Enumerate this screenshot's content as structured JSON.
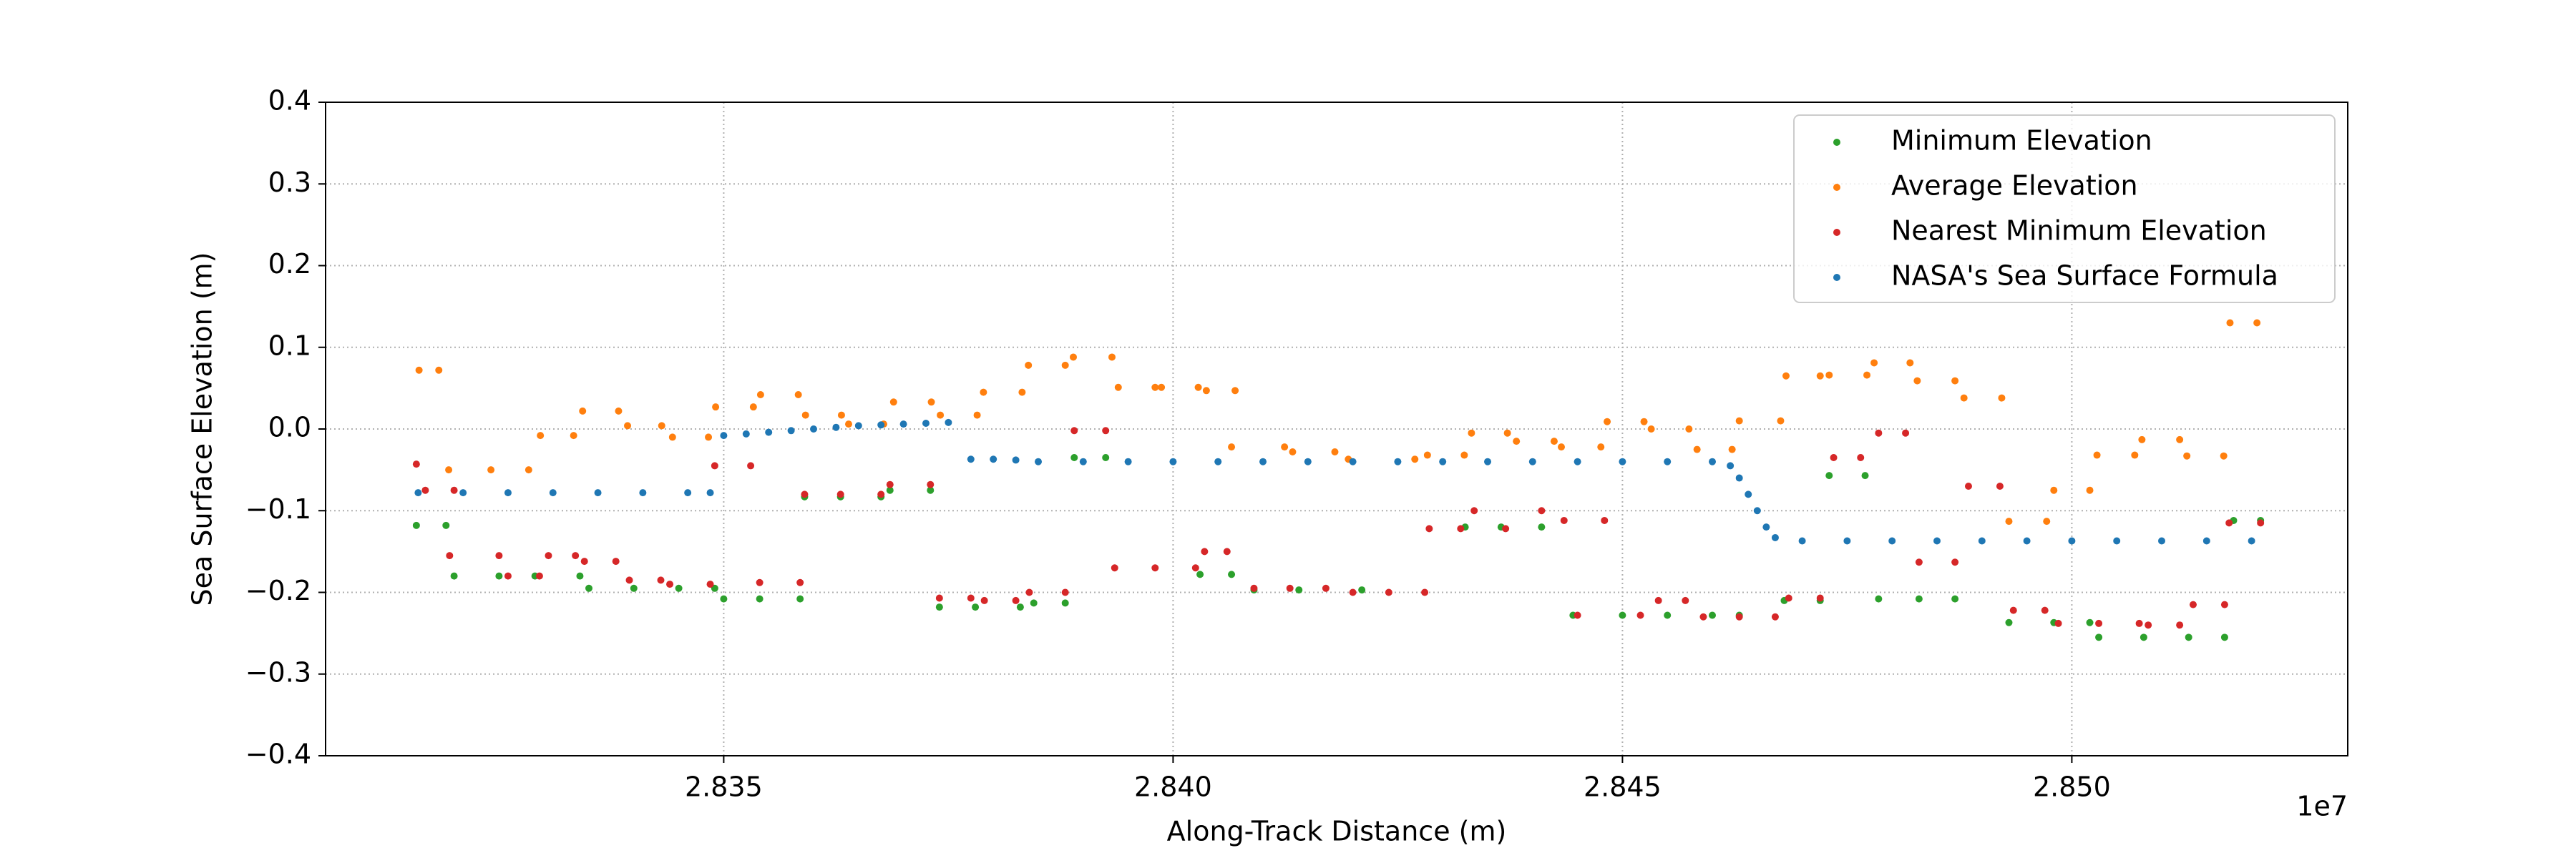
{
  "chart_data": {
    "type": "scatter",
    "xlabel": "Along-Track Distance (m)",
    "ylabel": "Sea Surface Elevation (m)",
    "x_offset_text": "1e7",
    "xlim": [
      28305700,
      28530700
    ],
    "ylim": [
      -0.4,
      0.4
    ],
    "xticks": [
      {
        "value": 28350000,
        "label": "2.835"
      },
      {
        "value": 28400000,
        "label": "2.840"
      },
      {
        "value": 28450000,
        "label": "2.845"
      },
      {
        "value": 28500000,
        "label": "2.850"
      }
    ],
    "yticks": [
      {
        "value": -0.4,
        "label": "−0.4"
      },
      {
        "value": -0.3,
        "label": "−0.3"
      },
      {
        "value": -0.2,
        "label": "−0.2"
      },
      {
        "value": -0.1,
        "label": "−0.1"
      },
      {
        "value": 0,
        "label": "0.0"
      },
      0.1,
      0.2,
      0.3,
      0.4
    ],
    "grid": true,
    "legend": "upper right",
    "series": [
      {
        "name": "Minimum Elevation",
        "color": "#2ca02c",
        "x": [
          28315800,
          28319100,
          28320000,
          28325000,
          28329000,
          28334000,
          28335000,
          28340000,
          28345000,
          28349000,
          28350000,
          28354000,
          28358500,
          28359000,
          28363000,
          28367500,
          28368500,
          28373000,
          28374000,
          28378000,
          28383000,
          28384500,
          28388000,
          28389000,
          28392500,
          28403000,
          28406500,
          28409000,
          28414000,
          28421000,
          28432500,
          28436500,
          28441000,
          28444500,
          28450000,
          28455000,
          28460000,
          28463000,
          28468000,
          28472000,
          28473000,
          28477000,
          28478500,
          28483000,
          28487000,
          28493000,
          28498000,
          28502000,
          28503000,
          28508000,
          28513000,
          28517000,
          28518000,
          28521000
        ],
        "values": [
          -0.118,
          -0.118,
          -0.18,
          -0.18,
          -0.18,
          -0.18,
          -0.195,
          -0.195,
          -0.195,
          -0.195,
          -0.208,
          -0.208,
          -0.208,
          -0.083,
          -0.083,
          -0.083,
          -0.075,
          -0.075,
          -0.218,
          -0.218,
          -0.218,
          -0.213,
          -0.213,
          -0.035,
          -0.035,
          -0.178,
          -0.178,
          -0.197,
          -0.197,
          -0.197,
          -0.12,
          -0.12,
          -0.12,
          -0.228,
          -0.228,
          -0.228,
          -0.228,
          -0.228,
          -0.21,
          -0.21,
          -0.057,
          -0.057,
          -0.208,
          -0.208,
          -0.208,
          -0.237,
          -0.237,
          -0.237,
          -0.255,
          -0.255,
          -0.255,
          -0.255,
          -0.112,
          -0.112
        ]
      },
      {
        "name": "Average Elevation",
        "color": "#ff7f0e",
        "x": [
          28316100,
          28318300,
          28319400,
          28324100,
          28328300,
          28329600,
          28333300,
          28334300,
          28338300,
          28339300,
          28343100,
          28344300,
          28348300,
          28349100,
          28353300,
          28354100,
          28358300,
          28359100,
          28363100,
          28363900,
          28367800,
          28368900,
          28373100,
          28374100,
          28378200,
          28378900,
          28383200,
          28383900,
          28388000,
          28388900,
          28393200,
          28393900,
          28398000,
          28398700,
          28402800,
          28403700,
          28406900,
          28406500,
          28412400,
          28413300,
          28418000,
          28419500,
          28426900,
          28428300,
          28432400,
          28433200,
          28437200,
          28438200,
          28442400,
          28443200,
          28447600,
          28448300,
          28452400,
          28453200,
          28457400,
          28458300,
          28462200,
          28463000,
          28467600,
          28468200,
          28472000,
          28473000,
          28477200,
          28478000,
          28482000,
          28482800,
          28487000,
          28488000,
          28492200,
          28493000,
          28497200,
          28498000,
          28502000,
          28502800,
          28507000,
          28507800,
          28512000,
          28512800,
          28516900,
          28517600,
          28520600
        ],
        "values": [
          0.072,
          0.072,
          -0.05,
          -0.05,
          -0.05,
          -0.008,
          -0.008,
          0.022,
          0.022,
          0.004,
          0.004,
          -0.01,
          -0.01,
          0.027,
          0.027,
          0.042,
          0.042,
          0.017,
          0.017,
          0.006,
          0.006,
          0.033,
          0.033,
          0.017,
          0.017,
          0.045,
          0.045,
          0.078,
          0.078,
          0.088,
          0.088,
          0.051,
          0.051,
          0.051,
          0.051,
          0.047,
          0.047,
          -0.022,
          -0.022,
          -0.028,
          -0.028,
          -0.037,
          -0.037,
          -0.032,
          -0.032,
          -0.005,
          -0.005,
          -0.015,
          -0.015,
          -0.022,
          -0.022,
          0.009,
          0.009,
          0,
          0,
          -0.025,
          -0.025,
          0.01,
          0.01,
          0.065,
          0.065,
          0.066,
          0.066,
          0.081,
          0.081,
          0.059,
          0.059,
          0.038,
          0.038,
          -0.113,
          -0.113,
          -0.075,
          -0.075,
          -0.032,
          -0.032,
          -0.013,
          -0.013,
          -0.033,
          -0.033,
          0.13,
          0.13
        ]
      },
      {
        "name": "Nearest Minimum Elevation",
        "color": "#d62728",
        "x": [
          28315800,
          28316800,
          28320000,
          28319500,
          28325000,
          28326000,
          28329500,
          28330500,
          28333500,
          28334500,
          28338000,
          28339500,
          28343000,
          28344000,
          28348500,
          28349000,
          28353000,
          28354000,
          28358500,
          28359000,
          28363000,
          28367500,
          28368500,
          28373000,
          28374000,
          28377500,
          28379000,
          28382500,
          28384000,
          28388000,
          28389000,
          28392500,
          28393500,
          28398000,
          28402500,
          28403500,
          28406000,
          28409000,
          28413000,
          28417000,
          28420000,
          28424000,
          28428000,
          28428500,
          28432000,
          28437000,
          28433500,
          28441000,
          28443500,
          28448000,
          28445000,
          28452000,
          28454000,
          28457000,
          28459000,
          28463000,
          28467000,
          28468500,
          28472000,
          28473500,
          28476500,
          28478500,
          28481500,
          28483000,
          28487000,
          28488500,
          28492000,
          28493500,
          28497000,
          28498500,
          28503000,
          28507500,
          28508500,
          28512000,
          28513500,
          28517000,
          28517500,
          28521000
        ],
        "values": [
          -0.043,
          -0.075,
          -0.075,
          -0.155,
          -0.155,
          -0.18,
          -0.18,
          -0.155,
          -0.155,
          -0.162,
          -0.162,
          -0.185,
          -0.185,
          -0.19,
          -0.19,
          -0.045,
          -0.045,
          -0.188,
          -0.188,
          -0.08,
          -0.08,
          -0.08,
          -0.068,
          -0.068,
          -0.207,
          -0.207,
          -0.21,
          -0.21,
          -0.2,
          -0.2,
          -0.002,
          -0.002,
          -0.17,
          -0.17,
          -0.17,
          -0.15,
          -0.15,
          -0.195,
          -0.195,
          -0.195,
          -0.2,
          -0.2,
          -0.2,
          -0.122,
          -0.122,
          -0.122,
          -0.1,
          -0.1,
          -0.112,
          -0.112,
          -0.228,
          -0.228,
          -0.21,
          -0.21,
          -0.23,
          -0.23,
          -0.23,
          -0.207,
          -0.207,
          -0.035,
          -0.035,
          -0.005,
          -0.005,
          -0.163,
          -0.163,
          -0.07,
          -0.07,
          -0.222,
          -0.222,
          -0.238,
          -0.238,
          -0.238,
          -0.24,
          -0.24,
          -0.215,
          -0.215,
          -0.115,
          -0.115
        ]
      },
      {
        "name": "NASA's Sea Surface Formula",
        "color": "#1f77b4",
        "x": [
          28316000,
          28321000,
          28326000,
          28331000,
          28336000,
          28341000,
          28346000,
          28348500,
          28350000,
          28352500,
          28355000,
          28357500,
          28360000,
          28362500,
          28365000,
          28367500,
          28370000,
          28372500,
          28375000,
          28377500,
          28380000,
          28382500,
          28385000,
          28390000,
          28395000,
          28400000,
          28405000,
          28410000,
          28415000,
          28420000,
          28425000,
          28430000,
          28435000,
          28440000,
          28445000,
          28450000,
          28455000,
          28460000,
          28462000,
          28463000,
          28464000,
          28465000,
          28466000,
          28467000,
          28470000,
          28475000,
          28480000,
          28485000,
          28490000,
          28495000,
          28500000,
          28505000,
          28510000,
          28515000,
          28520000
        ],
        "values": [
          -0.078,
          -0.078,
          -0.078,
          -0.078,
          -0.078,
          -0.078,
          -0.078,
          -0.078,
          -0.008,
          -0.006,
          -0.004,
          -0.002,
          0,
          0.002,
          0.004,
          0.005,
          0.006,
          0.007,
          0.008,
          -0.037,
          -0.037,
          -0.038,
          -0.04,
          -0.04,
          -0.04,
          -0.04,
          -0.04,
          -0.04,
          -0.04,
          -0.04,
          -0.04,
          -0.04,
          -0.04,
          -0.04,
          -0.04,
          -0.04,
          -0.04,
          -0.04,
          -0.045,
          -0.06,
          -0.08,
          -0.1,
          -0.12,
          -0.133,
          -0.137,
          -0.137,
          -0.137,
          -0.137,
          -0.137,
          -0.137,
          -0.137,
          -0.137,
          -0.137,
          -0.137,
          -0.137
        ]
      }
    ]
  }
}
